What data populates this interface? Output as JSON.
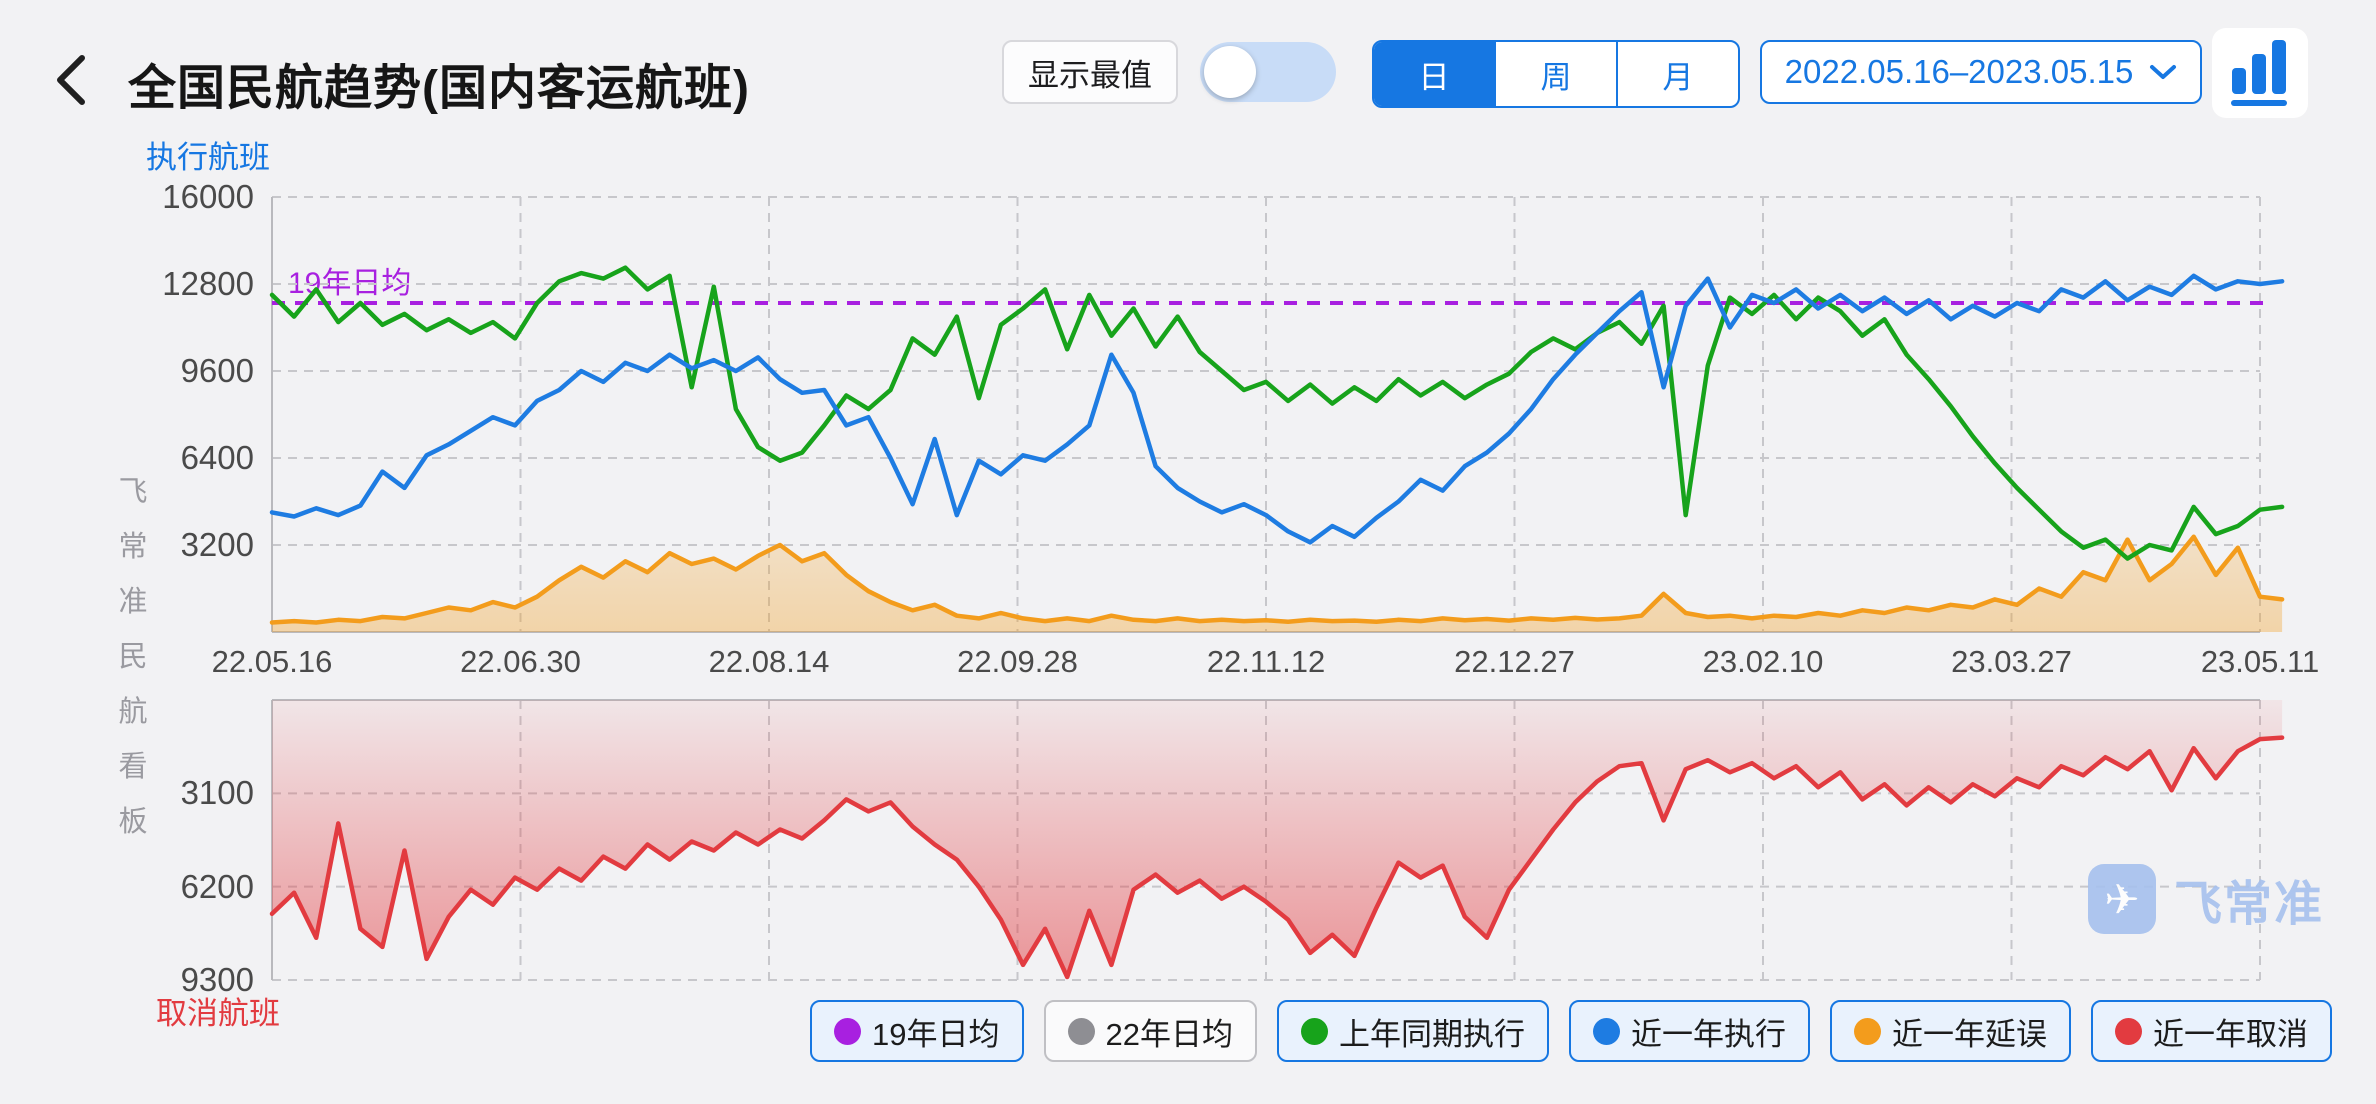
{
  "colors": {
    "accent_blue": "#1677e2",
    "line_blue": "#1e7ce2",
    "line_green": "#17a31b",
    "line_orange": "#f39c1c",
    "line_red": "#e23b40",
    "line_purple": "#a820e0",
    "dot_gray": "#8e8e93",
    "grid": "#c7c7cb",
    "axis_solid": "#b9b9bd",
    "axis_text": "#4a4a4a",
    "watermark_blue": "#a6c1ee"
  },
  "header": {
    "title": "全国民航趋势(国内客运航班)",
    "show_extremes_label": "显示最值",
    "show_extremes_on": false,
    "period_tabs": [
      "日",
      "周",
      "月"
    ],
    "period_active": "日",
    "date_range": "2022.05.16–2023.05.15"
  },
  "axis_titles": {
    "top": "执行航班",
    "bottom": "取消航班"
  },
  "side_watermark": "飞常准民航看板",
  "brand_watermark": "飞常准",
  "reference_label": "19年日均",
  "legend": [
    {
      "label": "19年日均",
      "color_key": "line_purple",
      "enabled": true
    },
    {
      "label": "22年日均",
      "color_key": "dot_gray",
      "enabled": false
    },
    {
      "label": "上年同期执行",
      "color_key": "line_green",
      "enabled": true
    },
    {
      "label": "近一年执行",
      "color_key": "line_blue",
      "enabled": true
    },
    {
      "label": "近一年延误",
      "color_key": "line_orange",
      "enabled": true
    },
    {
      "label": "近一年取消",
      "color_key": "line_red",
      "enabled": true
    }
  ],
  "chart_data": [
    {
      "type": "line",
      "title": "执行航班",
      "ylim": [
        0,
        16000
      ],
      "y_ticks": [
        16000,
        12800,
        9600,
        6400,
        3200
      ],
      "x_ticks": [
        "22.05.16",
        "22.06.30",
        "22.08.14",
        "22.09.28",
        "22.11.12",
        "22.12.27",
        "23.02.10",
        "23.03.27",
        "23.05.11"
      ],
      "grid": true,
      "legend_position": "bottom",
      "reference_line": {
        "name": "19年日均",
        "value": 12100
      },
      "series": [
        {
          "name": "上年同期执行",
          "color_key": "line_green",
          "area": false,
          "values": [
            12400,
            11600,
            12600,
            11400,
            12100,
            11300,
            11700,
            11100,
            11500,
            11000,
            11400,
            10800,
            12100,
            12900,
            13200,
            13000,
            13400,
            12600,
            13100,
            9000,
            12700,
            8200,
            6800,
            6300,
            6600,
            7600,
            8700,
            8200,
            8900,
            10800,
            10200,
            11600,
            8600,
            11300,
            11900,
            12600,
            10400,
            12400,
            10900,
            11900,
            10500,
            11600,
            10300,
            9600,
            8900,
            9200,
            8500,
            9100,
            8400,
            9000,
            8500,
            9300,
            8700,
            9200,
            8600,
            9100,
            9500,
            10300,
            10800,
            10400,
            11000,
            11400,
            10600,
            12000,
            4300,
            9800,
            12300,
            11700,
            12400,
            11500,
            12300,
            11800,
            10900,
            11500,
            10200,
            9300,
            8300,
            7200,
            6200,
            5300,
            4500,
            3700,
            3100,
            3400,
            2700,
            3200,
            3000,
            4600,
            3600,
            3900,
            4500,
            4600
          ]
        },
        {
          "name": "近一年执行",
          "color_key": "line_blue",
          "area": false,
          "values": [
            4400,
            4250,
            4550,
            4300,
            4650,
            5900,
            5300,
            6500,
            6900,
            7400,
            7900,
            7600,
            8500,
            8900,
            9600,
            9200,
            9900,
            9600,
            10200,
            9700,
            10000,
            9600,
            10100,
            9300,
            8800,
            8900,
            7600,
            7900,
            6400,
            4700,
            7100,
            4300,
            6300,
            5800,
            6500,
            6300,
            6900,
            7600,
            10200,
            8800,
            6100,
            5300,
            4800,
            4400,
            4700,
            4300,
            3700,
            3300,
            3900,
            3500,
            4200,
            4800,
            5600,
            5200,
            6100,
            6600,
            7300,
            8200,
            9300,
            10200,
            11000,
            11800,
            12500,
            9000,
            12000,
            13000,
            11200,
            12400,
            12100,
            12600,
            11900,
            12400,
            11800,
            12300,
            11700,
            12200,
            11500,
            12000,
            11600,
            12100,
            11800,
            12600,
            12300,
            12900,
            12200,
            12700,
            12400,
            13100,
            12600,
            12900,
            12800,
            12900
          ]
        },
        {
          "name": "近一年延误",
          "color_key": "line_orange",
          "area": true,
          "values": [
            350,
            400,
            350,
            450,
            400,
            550,
            500,
            700,
            900,
            800,
            1100,
            900,
            1300,
            1900,
            2400,
            2000,
            2600,
            2200,
            2900,
            2500,
            2700,
            2300,
            2800,
            3200,
            2600,
            2900,
            2100,
            1500,
            1100,
            800,
            1000,
            600,
            500,
            700,
            500,
            400,
            500,
            400,
            600,
            450,
            400,
            500,
            400,
            450,
            400,
            430,
            380,
            450,
            400,
            420,
            380,
            450,
            400,
            500,
            430,
            480,
            420,
            500,
            450,
            520,
            460,
            500,
            600,
            1400,
            700,
            550,
            600,
            500,
            600,
            550,
            700,
            600,
            800,
            700,
            900,
            800,
            1000,
            900,
            1200,
            1000,
            1600,
            1300,
            2200,
            1900,
            3400,
            1900,
            2500,
            3500,
            2100,
            3100,
            1300,
            1200
          ]
        }
      ]
    },
    {
      "type": "area",
      "title": "取消航班",
      "inverted": true,
      "ylim": [
        0,
        9300
      ],
      "y_ticks": [
        3100,
        6200,
        9300
      ],
      "x_ticks": [
        "22.05.16",
        "22.06.30",
        "22.08.14",
        "22.09.28",
        "22.11.12",
        "22.12.27",
        "23.02.10",
        "23.03.27",
        "23.05.11"
      ],
      "grid": true,
      "series": [
        {
          "name": "近一年取消",
          "color_key": "line_red",
          "area": true,
          "values": [
            7100,
            6400,
            7900,
            4100,
            7600,
            8200,
            5000,
            8600,
            7200,
            6300,
            6800,
            5900,
            6300,
            5600,
            6000,
            5200,
            5600,
            4800,
            5300,
            4700,
            5000,
            4400,
            4800,
            4300,
            4600,
            4000,
            3300,
            3700,
            3400,
            4200,
            4800,
            5300,
            6200,
            7300,
            8800,
            7600,
            9200,
            7000,
            8800,
            6300,
            5800,
            6400,
            6000,
            6600,
            6200,
            6700,
            7300,
            8400,
            7800,
            8500,
            6900,
            5400,
            5900,
            5500,
            7200,
            7900,
            6300,
            5300,
            4300,
            3400,
            2700,
            2200,
            2100,
            4000,
            2300,
            2000,
            2400,
            2100,
            2600,
            2200,
            2900,
            2400,
            3300,
            2800,
            3500,
            2900,
            3400,
            2800,
            3200,
            2600,
            2900,
            2200,
            2500,
            1900,
            2300,
            1700,
            3000,
            1600,
            2600,
            1700,
            1300,
            1250
          ]
        }
      ]
    }
  ]
}
